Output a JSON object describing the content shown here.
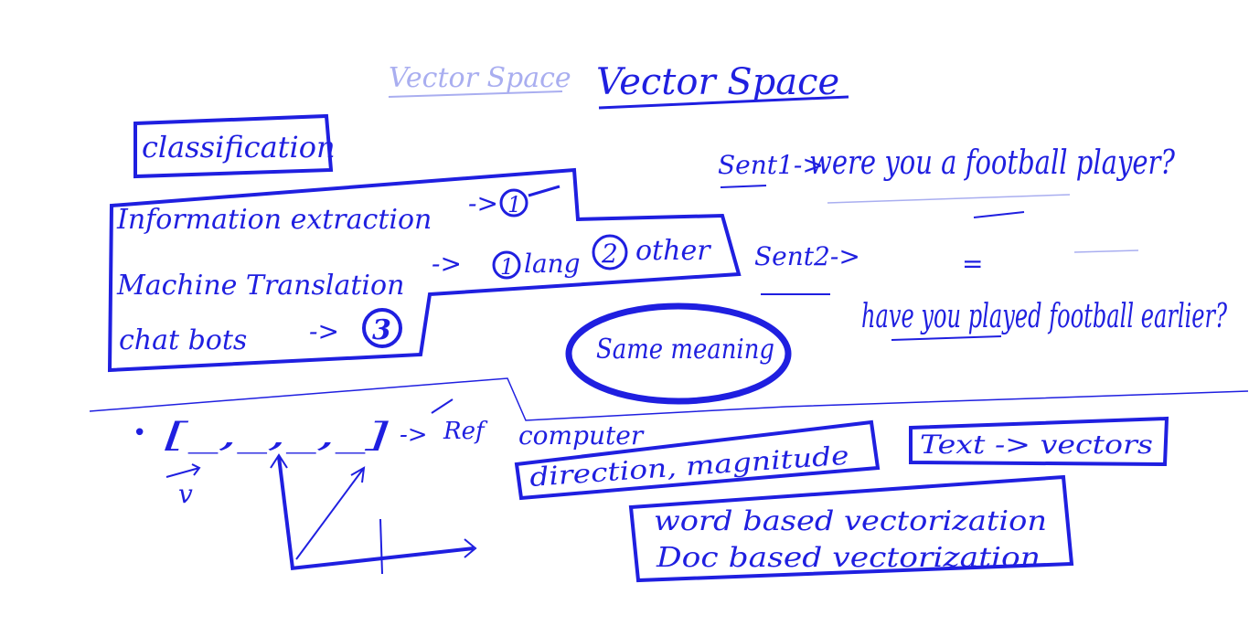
{
  "page": {
    "ink_color": "#1f1fe0",
    "faint_color": "#a9aef0",
    "background": "#ffffff"
  },
  "title": {
    "faint": "Vector Space",
    "main": "Vector Space"
  },
  "left_section": {
    "heading": "classification",
    "items": [
      {
        "label": "Information extraction",
        "arrow": "->",
        "marker": "1"
      },
      {
        "label": "Machine Translation",
        "arrow": "->",
        "marker": "1",
        "note": "lang",
        "marker2": "2",
        "note2": "other"
      },
      {
        "label": "chat bots",
        "arrow": "->",
        "marker": "3"
      }
    ]
  },
  "right_section": {
    "sent1_label": "Sent1->",
    "sent1_text": "were you a football player?",
    "sent2_label": "Sent2->",
    "equals": "=",
    "sent2_text": "have you played football earlier?",
    "same_meaning": "Same meaning"
  },
  "bottom_section": {
    "bullet": "•",
    "vector_notation": "[_,_,_,_]",
    "arrow": "->",
    "ref": "Ref",
    "computer": "computer",
    "v_symbol": "v",
    "direction": "direction, magnitude",
    "text_to_vectors": "Text -> vectors",
    "vectorization": [
      "word based vectorization",
      "Doc based vectorization"
    ]
  }
}
